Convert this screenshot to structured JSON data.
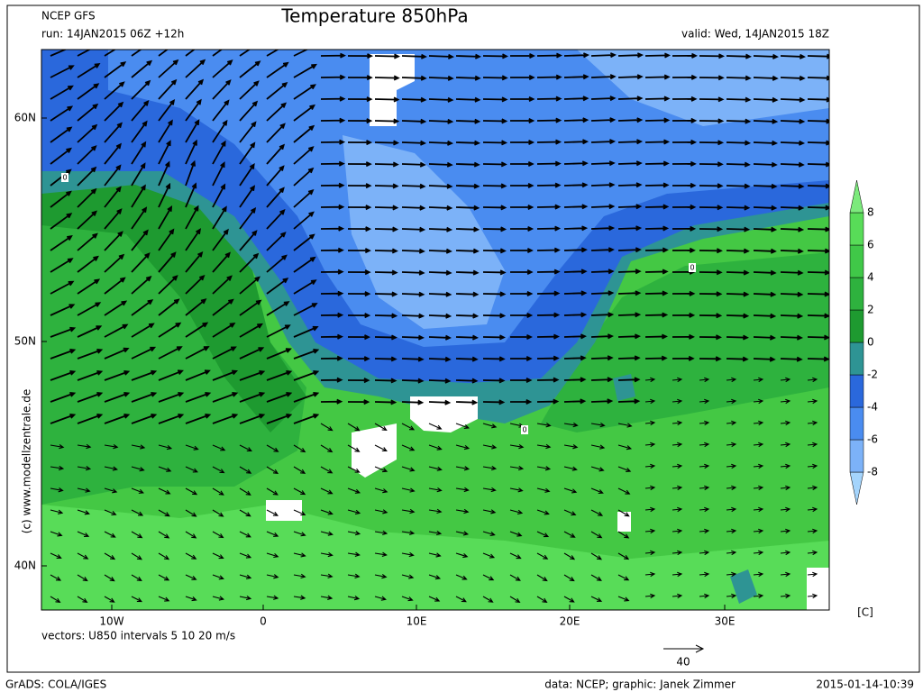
{
  "header": {
    "model": "NCEP GFS",
    "run": "run: 14JAN2015 06Z +12h",
    "title": "Temperature 850hPa",
    "valid": "valid: Wed, 14JAN2015 18Z"
  },
  "map": {
    "lat_labels": [
      "60N",
      "50N",
      "40N"
    ],
    "lon_labels": [
      "10W",
      "0",
      "10E",
      "20E",
      "30E"
    ],
    "vectors_note": "vectors: U850 intervals 5 10 20 m/s",
    "reference_vector": "40",
    "copyright": "(c) www.modellzentrale.de",
    "contour_labels": [
      "0",
      "0",
      "0"
    ]
  },
  "colorbar": {
    "levels": [
      -8,
      -6,
      -4,
      -2,
      0,
      2,
      4,
      6,
      8
    ],
    "unit": "[C]",
    "colors": [
      "#a4d4fc",
      "#7cb2f8",
      "#4a8cf0",
      "#2a68dc",
      "#2e9494",
      "#1e9a30",
      "#2eb23e",
      "#40c848",
      "#58dc58",
      "#7cea7c"
    ]
  },
  "footer": {
    "software": "GrADS: COLA/IGES",
    "credits": "data: NCEP; graphic: Janek Zimmer",
    "timestamp": "2015-01-14-10:39"
  }
}
